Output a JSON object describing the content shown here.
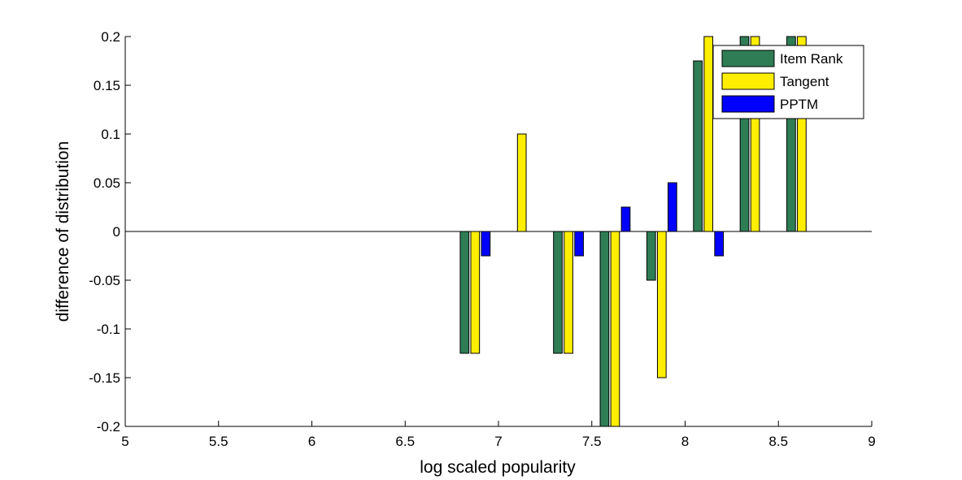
{
  "chart_data": {
    "type": "bar",
    "title": "",
    "xlabel": "log scaled popularity",
    "ylabel": "difference of distribution",
    "xlim": [
      5,
      9
    ],
    "ylim": [
      -0.2,
      0.2
    ],
    "xticks": [
      "5",
      "5.5",
      "6",
      "6.5",
      "7",
      "7.5",
      "8",
      "8.5",
      "9"
    ],
    "yticks": [
      "-0.2",
      "-0.15",
      "-0.1",
      "-0.05",
      "0",
      "0.05",
      "0.1",
      "0.15",
      "0.2"
    ],
    "grid": false,
    "legend_position": "top-right",
    "x": [
      6.875,
      7.125,
      7.375,
      7.625,
      7.875,
      8.125,
      8.375,
      8.625
    ],
    "series": [
      {
        "name": "Item Rank",
        "color": "#2e7d55",
        "values": [
          -0.125,
          0,
          -0.125,
          -0.2,
          -0.05,
          0.175,
          0.2,
          0.2
        ]
      },
      {
        "name": "Tangent",
        "color": "#ffee00",
        "values": [
          -0.125,
          0.1,
          -0.125,
          -0.2,
          -0.15,
          0.2,
          0.2,
          0.2
        ]
      },
      {
        "name": "PPTM",
        "color": "#0000ff",
        "values": [
          -0.025,
          0,
          -0.025,
          0.025,
          0.05,
          -0.025,
          0,
          0
        ]
      }
    ]
  }
}
